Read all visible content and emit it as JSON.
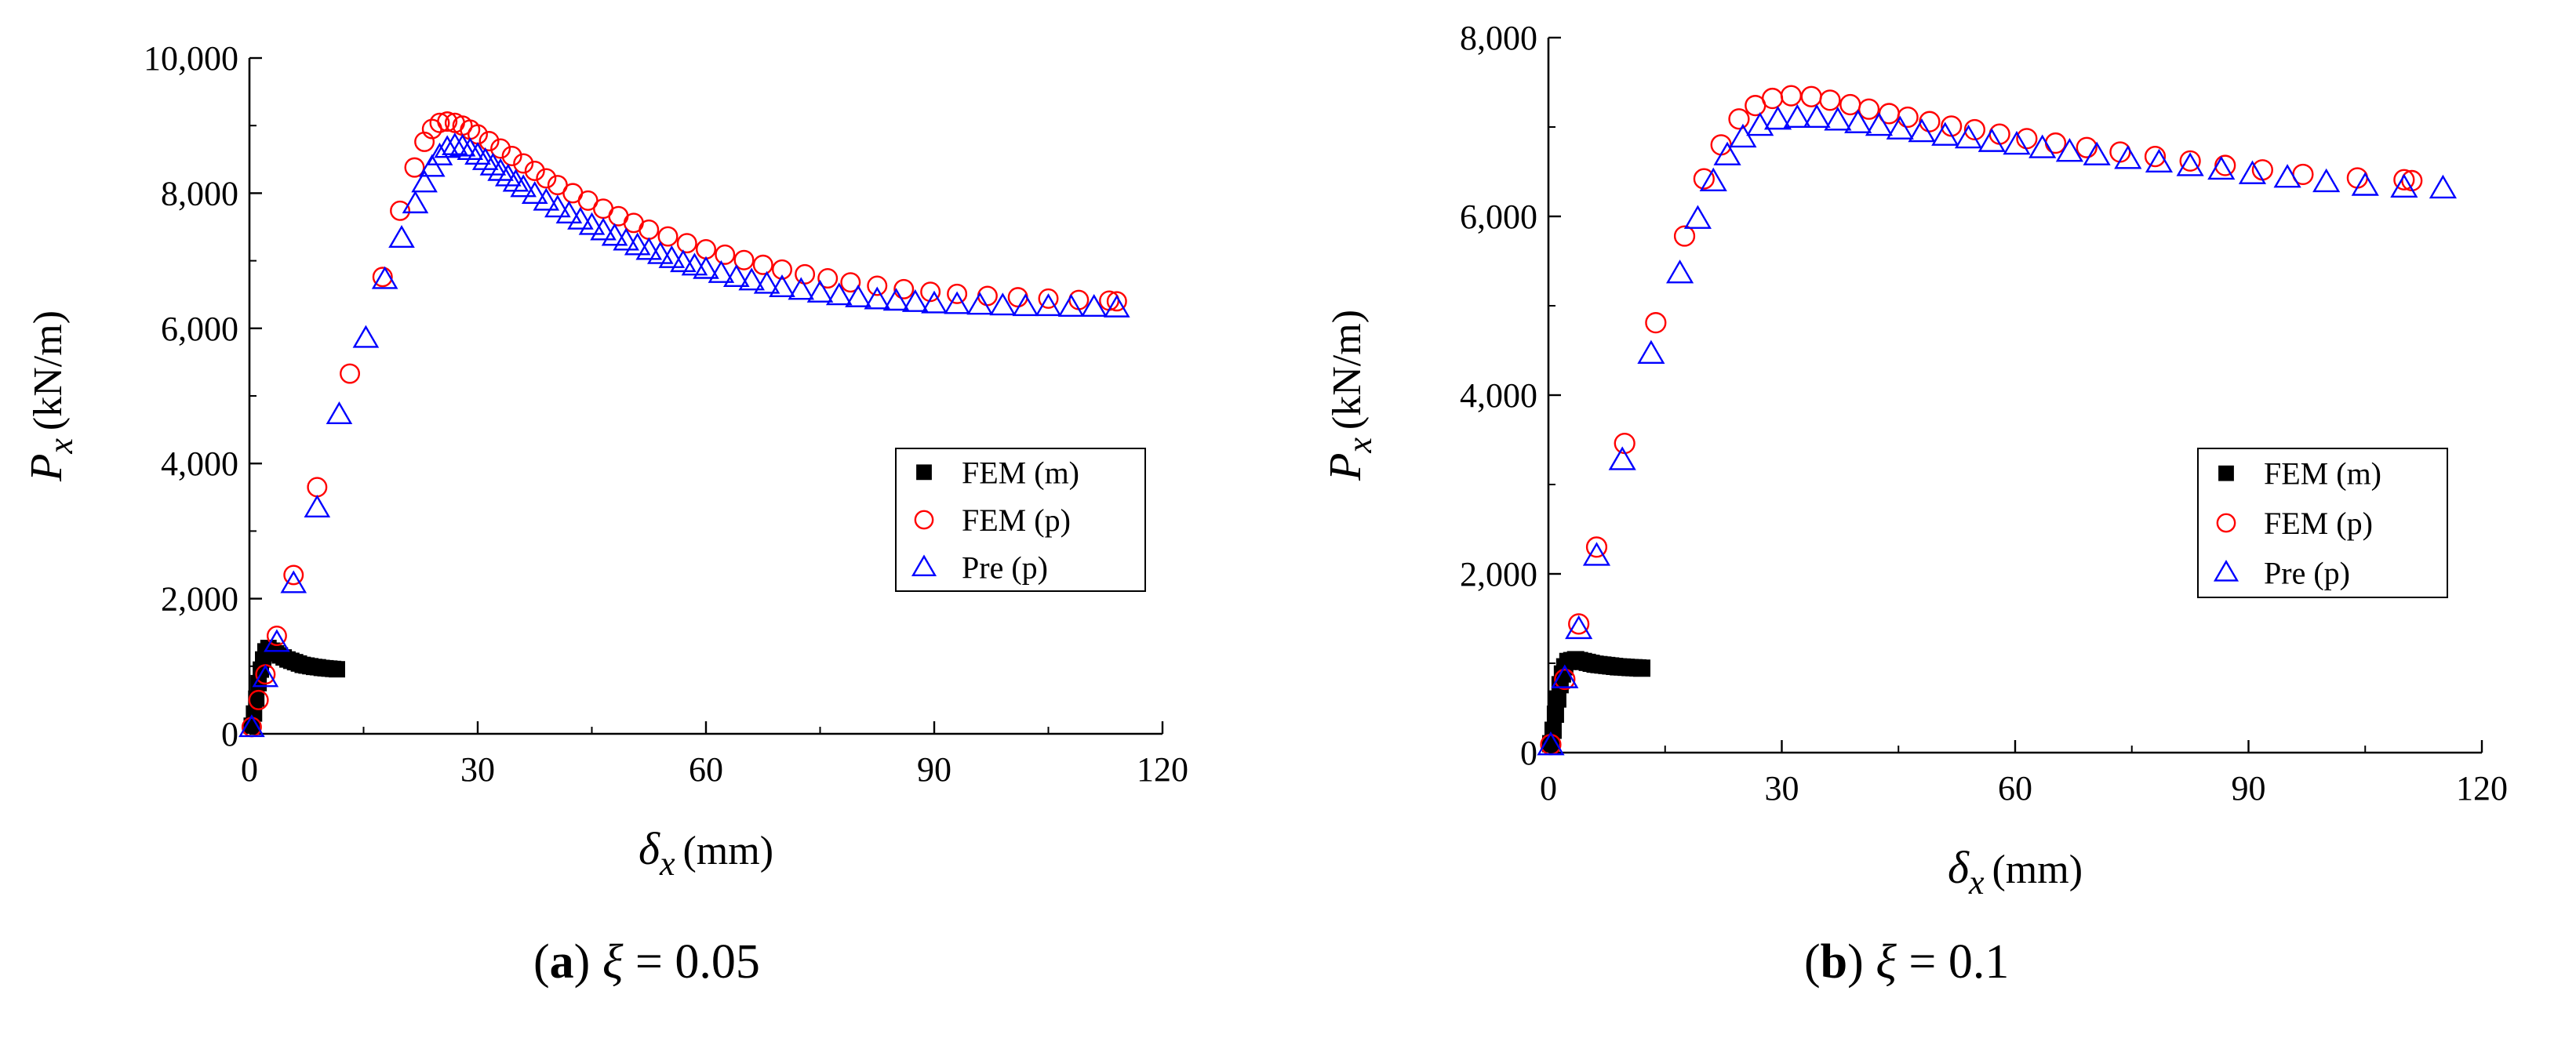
{
  "chart_data": [
    {
      "type": "scatter",
      "panel": "a",
      "caption": {
        "letter": "a",
        "variable": "ξ",
        "relation": "= 0.05"
      },
      "xlabel": {
        "symbol": "δ",
        "subscript": "x",
        "unit": "(mm)"
      },
      "ylabel": {
        "symbol": "P",
        "subscript": "x",
        "unit": "(kN/m)"
      },
      "xlim": [
        0,
        120
      ],
      "ylim": [
        0,
        10000
      ],
      "xticks": [
        0,
        30,
        60,
        90,
        120
      ],
      "xtick_labels": [
        "0",
        "30",
        "60",
        "90",
        "120"
      ],
      "yticks": [
        0,
        2000,
        4000,
        6000,
        8000,
        10000
      ],
      "ytick_labels": [
        "0",
        "2,000",
        "4,000",
        "6,000",
        "8,000",
        "10,000"
      ],
      "legend_position": "center-right",
      "series": [
        {
          "name": "FEM (m)",
          "marker": "square",
          "color": "#000000",
          "points": [
            [
              0.3,
              120
            ],
            [
              0.6,
              300
            ],
            [
              0.9,
              520
            ],
            [
              1.2,
              750
            ],
            [
              1.5,
              950
            ],
            [
              1.8,
              1100
            ],
            [
              2.1,
              1220
            ],
            [
              2.5,
              1270
            ],
            [
              3.0,
              1230
            ],
            [
              3.5,
              1190
            ],
            [
              4.0,
              1160
            ],
            [
              4.5,
              1130
            ],
            [
              5.0,
              1100
            ],
            [
              5.5,
              1080
            ],
            [
              6.0,
              1060
            ],
            [
              6.5,
              1040
            ],
            [
              7.0,
              1020
            ],
            [
              7.5,
              1010
            ],
            [
              8.0,
              1000
            ],
            [
              8.5,
              990
            ],
            [
              9.0,
              985
            ],
            [
              9.5,
              975
            ],
            [
              10.0,
              970
            ],
            [
              10.5,
              965
            ],
            [
              11.0,
              960
            ],
            [
              11.5,
              955
            ]
          ]
        },
        {
          "name": "FEM (p)",
          "marker": "circle",
          "color": "#ff0000",
          "points": [
            [
              0.3,
              100
            ],
            [
              1.2,
              500
            ],
            [
              2.1,
              880
            ],
            [
              3.6,
              1450
            ],
            [
              5.8,
              2350
            ],
            [
              8.9,
              3650
            ],
            [
              13.2,
              5330
            ],
            [
              17.5,
              6760
            ],
            [
              19.8,
              7740
            ],
            [
              21.7,
              8380
            ],
            [
              23.0,
              8760
            ],
            [
              24.0,
              8950
            ],
            [
              25.0,
              9040
            ],
            [
              26.0,
              9060
            ],
            [
              27.0,
              9040
            ],
            [
              28.0,
              9000
            ],
            [
              29.0,
              8940
            ],
            [
              30.0,
              8870
            ],
            [
              31.5,
              8770
            ],
            [
              33.0,
              8660
            ],
            [
              34.5,
              8550
            ],
            [
              36.0,
              8440
            ],
            [
              37.5,
              8330
            ],
            [
              39.0,
              8220
            ],
            [
              40.5,
              8120
            ],
            [
              42.5,
              8000
            ],
            [
              44.5,
              7890
            ],
            [
              46.5,
              7770
            ],
            [
              48.5,
              7660
            ],
            [
              50.5,
              7560
            ],
            [
              52.5,
              7460
            ],
            [
              55.0,
              7360
            ],
            [
              57.5,
              7260
            ],
            [
              60.0,
              7170
            ],
            [
              62.5,
              7090
            ],
            [
              65.0,
              7010
            ],
            [
              67.5,
              6940
            ],
            [
              70.0,
              6870
            ],
            [
              73.0,
              6800
            ],
            [
              76.0,
              6740
            ],
            [
              79.0,
              6680
            ],
            [
              82.5,
              6630
            ],
            [
              86.0,
              6580
            ],
            [
              89.5,
              6540
            ],
            [
              93.0,
              6510
            ],
            [
              97.0,
              6480
            ],
            [
              101.0,
              6460
            ],
            [
              105.0,
              6440
            ],
            [
              109.0,
              6420
            ],
            [
              113.0,
              6410
            ],
            [
              114.0,
              6400
            ]
          ]
        },
        {
          "name": "Pre (p)",
          "marker": "triangle",
          "color": "#0000ff",
          "points": [
            [
              0.3,
              90
            ],
            [
              2.1,
              830
            ],
            [
              3.6,
              1350
            ],
            [
              5.8,
              2220
            ],
            [
              8.9,
              3340
            ],
            [
              11.8,
              4720
            ],
            [
              15.3,
              5850
            ],
            [
              17.8,
              6720
            ],
            [
              20.0,
              7330
            ],
            [
              21.8,
              7840
            ],
            [
              23.0,
              8150
            ],
            [
              24.0,
              8380
            ],
            [
              25.0,
              8550
            ],
            [
              26.0,
              8660
            ],
            [
              27.0,
              8700
            ],
            [
              28.0,
              8680
            ],
            [
              29.0,
              8630
            ],
            [
              30.0,
              8560
            ],
            [
              31.0,
              8480
            ],
            [
              32.0,
              8400
            ],
            [
              33.0,
              8320
            ],
            [
              34.0,
              8240
            ],
            [
              35.0,
              8160
            ],
            [
              36.0,
              8080
            ],
            [
              37.5,
              7980
            ],
            [
              39.0,
              7880
            ],
            [
              40.5,
              7780
            ],
            [
              42.0,
              7690
            ],
            [
              43.5,
              7600
            ],
            [
              45.0,
              7520
            ],
            [
              46.5,
              7440
            ],
            [
              48.0,
              7360
            ],
            [
              49.5,
              7290
            ],
            [
              51.0,
              7220
            ],
            [
              52.5,
              7150
            ],
            [
              54.0,
              7090
            ],
            [
              55.5,
              7030
            ],
            [
              57.0,
              6970
            ],
            [
              58.5,
              6920
            ],
            [
              60.0,
              6870
            ],
            [
              62.0,
              6810
            ],
            [
              64.0,
              6750
            ],
            [
              66.0,
              6700
            ],
            [
              68.0,
              6650
            ],
            [
              70.0,
              6600
            ],
            [
              72.5,
              6560
            ],
            [
              75.0,
              6520
            ],
            [
              77.5,
              6480
            ],
            [
              80.0,
              6450
            ],
            [
              82.5,
              6420
            ],
            [
              85.0,
              6400
            ],
            [
              87.5,
              6380
            ],
            [
              90.0,
              6360
            ],
            [
              93.0,
              6350
            ],
            [
              96.0,
              6340
            ],
            [
              99.0,
              6330
            ],
            [
              102.0,
              6320
            ],
            [
              105.0,
              6320
            ],
            [
              108.0,
              6310
            ],
            [
              111.0,
              6310
            ],
            [
              114.0,
              6300
            ]
          ]
        }
      ]
    },
    {
      "type": "scatter",
      "panel": "b",
      "caption": {
        "letter": "b",
        "variable": "ξ",
        "relation": "= 0.1"
      },
      "xlabel": {
        "symbol": "δ",
        "subscript": "x",
        "unit": "(mm)"
      },
      "ylabel": {
        "symbol": "P",
        "subscript": "x",
        "unit": "(kN/m)"
      },
      "xlim": [
        0,
        120
      ],
      "ylim": [
        0,
        8000
      ],
      "xticks": [
        0,
        30,
        60,
        90,
        120
      ],
      "xtick_labels": [
        "0",
        "30",
        "60",
        "90",
        "120"
      ],
      "yticks": [
        0,
        2000,
        4000,
        6000,
        8000
      ],
      "ytick_labels": [
        "0",
        "2,000",
        "4,000",
        "6,000",
        "8,000"
      ],
      "legend_position": "center-right",
      "series": [
        {
          "name": "FEM (m)",
          "marker": "square",
          "color": "#000000",
          "points": [
            [
              0.3,
              100
            ],
            [
              0.6,
              250
            ],
            [
              0.9,
              430
            ],
            [
              1.2,
              600
            ],
            [
              1.5,
              760
            ],
            [
              1.8,
              880
            ],
            [
              2.1,
              960
            ],
            [
              2.5,
              1020
            ],
            [
              3.0,
              1030
            ],
            [
              3.5,
              1040
            ],
            [
              4.0,
              1030
            ],
            [
              4.5,
              1020
            ],
            [
              5.0,
              1010
            ],
            [
              5.5,
              1000
            ],
            [
              6.0,
              990
            ],
            [
              6.5,
              985
            ],
            [
              7.0,
              980
            ],
            [
              7.5,
              975
            ],
            [
              8.0,
              970
            ],
            [
              8.5,
              965
            ],
            [
              9.0,
              960
            ],
            [
              9.5,
              958
            ],
            [
              10.0,
              955
            ],
            [
              10.5,
              952
            ],
            [
              11.0,
              950
            ],
            [
              11.5,
              948
            ],
            [
              12.0,
              945
            ]
          ]
        },
        {
          "name": "FEM (p)",
          "marker": "circle",
          "color": "#ff0000",
          "points": [
            [
              0.3,
              90
            ],
            [
              2.1,
              820
            ],
            [
              3.9,
              1440
            ],
            [
              6.2,
              2300
            ],
            [
              9.8,
              3460
            ],
            [
              13.8,
              4810
            ],
            [
              17.5,
              5780
            ],
            [
              20.0,
              6420
            ],
            [
              22.2,
              6800
            ],
            [
              24.5,
              7090
            ],
            [
              26.6,
              7240
            ],
            [
              28.8,
              7320
            ],
            [
              31.2,
              7350
            ],
            [
              33.8,
              7340
            ],
            [
              36.2,
              7300
            ],
            [
              38.8,
              7250
            ],
            [
              41.2,
              7200
            ],
            [
              43.8,
              7150
            ],
            [
              46.2,
              7110
            ],
            [
              49.0,
              7060
            ],
            [
              51.8,
              7010
            ],
            [
              54.8,
              6970
            ],
            [
              58.0,
              6920
            ],
            [
              61.5,
              6870
            ],
            [
              65.2,
              6820
            ],
            [
              69.2,
              6770
            ],
            [
              73.5,
              6720
            ],
            [
              78.0,
              6670
            ],
            [
              82.5,
              6620
            ],
            [
              87.0,
              6570
            ],
            [
              91.8,
              6520
            ],
            [
              97.0,
              6470
            ],
            [
              104.0,
              6430
            ],
            [
              110.0,
              6410
            ],
            [
              111.0,
              6400
            ]
          ]
        },
        {
          "name": "Pre (p)",
          "marker": "triangle",
          "color": "#0000ff",
          "points": [
            [
              0.3,
              80
            ],
            [
              2.1,
              830
            ],
            [
              3.9,
              1380
            ],
            [
              6.2,
              2200
            ],
            [
              9.5,
              3270
            ],
            [
              13.2,
              4460
            ],
            [
              16.9,
              5360
            ],
            [
              19.2,
              5970
            ],
            [
              21.2,
              6390
            ],
            [
              23.0,
              6680
            ],
            [
              25.0,
              6880
            ],
            [
              27.2,
              7010
            ],
            [
              29.5,
              7080
            ],
            [
              32.0,
              7100
            ],
            [
              34.5,
              7100
            ],
            [
              37.2,
              7070
            ],
            [
              39.8,
              7040
            ],
            [
              42.5,
              7010
            ],
            [
              45.2,
              6970
            ],
            [
              48.0,
              6940
            ],
            [
              51.0,
              6900
            ],
            [
              54.0,
              6870
            ],
            [
              57.0,
              6830
            ],
            [
              60.2,
              6800
            ],
            [
              63.5,
              6760
            ],
            [
              67.0,
              6720
            ],
            [
              70.5,
              6680
            ],
            [
              74.5,
              6640
            ],
            [
              78.5,
              6600
            ],
            [
              82.5,
              6560
            ],
            [
              86.5,
              6520
            ],
            [
              90.5,
              6470
            ],
            [
              95.0,
              6430
            ],
            [
              100.0,
              6380
            ],
            [
              105.0,
              6340
            ],
            [
              110.0,
              6320
            ],
            [
              115.0,
              6310
            ]
          ]
        }
      ]
    }
  ]
}
